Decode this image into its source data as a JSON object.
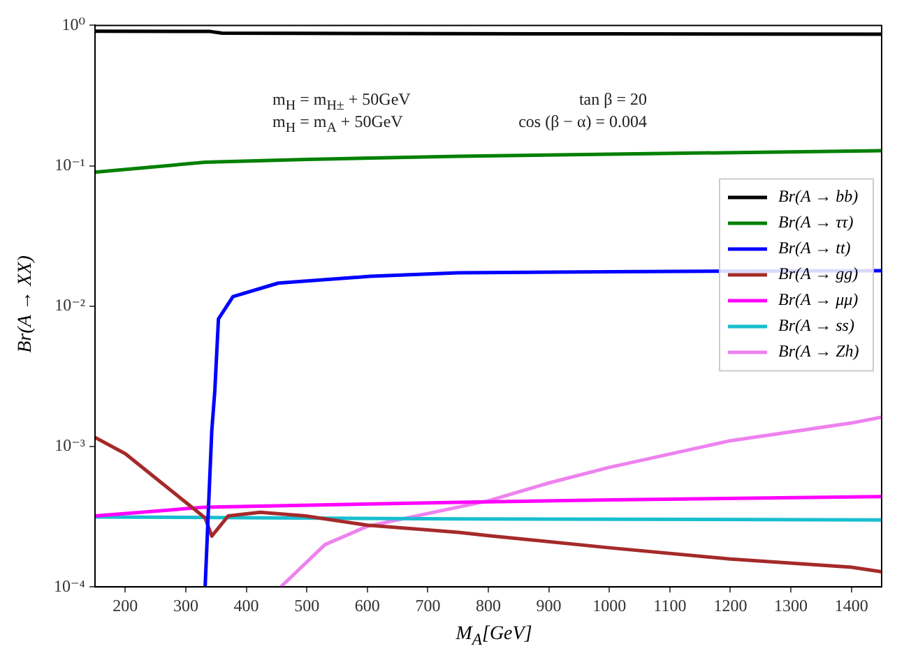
{
  "chart_data": {
    "type": "line",
    "xlabel": "M$_{A}$[GeV]",
    "ylabel": "Br(A → XX)",
    "annotations": [
      "m$_{H}$ = m$_{H±}$ + 50GeV",
      "m$_{H}$ = m$_{A}$ + 50GeV",
      "tan β = 20",
      "cos (β − α) = 0.004"
    ],
    "log": "y",
    "grid": false,
    "legend": "right",
    "marker": "none",
    "line_style": "solid",
    "xlim": [
      150,
      1450
    ],
    "xticks": [
      200,
      300,
      400,
      500,
      600,
      700,
      800,
      900,
      1000,
      1100,
      1200,
      1300,
      1400
    ],
    "ylim": [
      0.0001,
      1
    ],
    "yticks": [
      {
        "value": 0.0001,
        "label": "10⁻⁴"
      },
      {
        "value": 0.001,
        "label": "10⁻³"
      },
      {
        "value": 0.01,
        "label": "10⁻²"
      },
      {
        "value": 0.1,
        "label": "10⁻¹"
      },
      {
        "value": 1,
        "label": "10⁰"
      }
    ],
    "series": [
      {
        "name": "Br(A → bb)",
        "color": "#000000",
        "x": [
          150,
          340,
          360,
          600,
          1000,
          1450
        ],
        "values": [
          0.91,
          0.905,
          0.88,
          0.875,
          0.87,
          0.865
        ]
      },
      {
        "name": "Br(A → ττ)",
        "color": "#008000",
        "x": [
          150,
          332,
          500,
          750,
          1000,
          1450
        ],
        "values": [
          0.09,
          0.106,
          0.111,
          0.117,
          0.121,
          0.128
        ]
      },
      {
        "name": "Br(A → tt)",
        "color": "#0000ff",
        "x": [
          332,
          338,
          343,
          348,
          354,
          378,
          453,
          605,
          750,
          1000,
          1450
        ],
        "values": [
          0.0001,
          0.00041,
          0.0013,
          0.0025,
          0.0081,
          0.0117,
          0.0146,
          0.0163,
          0.0173,
          0.0176,
          0.0179
        ]
      },
      {
        "name": "Br(A → gg)",
        "color": "#a52a2a",
        "x": [
          150,
          200,
          300,
          332,
          343,
          370,
          423,
          498,
          600,
          750,
          800,
          1000,
          1200,
          1400,
          1450
        ],
        "values": [
          0.00116,
          0.00089,
          0.0004,
          0.00031,
          0.00023,
          0.00032,
          0.00034,
          0.00032,
          0.000275,
          0.000245,
          0.000232,
          0.00019,
          0.000158,
          0.000138,
          0.000128
        ]
      },
      {
        "name": "Br(A → μμ)",
        "color": "#ff00ff",
        "x": [
          150,
          332,
          750,
          1000,
          1450
        ],
        "values": [
          0.00032,
          0.00037,
          0.0004,
          0.000417,
          0.00044
        ]
      },
      {
        "name": "Br(A → ss)",
        "color": "#17becf",
        "x": [
          150,
          750,
          1450
        ],
        "values": [
          0.000315,
          0.000305,
          0.0003
        ]
      },
      {
        "name": "Br(A → Zh)",
        "color": "#ee82ee",
        "x": [
          457,
          530,
          600,
          750,
          800,
          900,
          1000,
          1200,
          1400,
          1450
        ],
        "values": [
          0.0001,
          0.0002,
          0.00027,
          0.00037,
          0.00041,
          0.00055,
          0.00071,
          0.0011,
          0.00147,
          0.00162
        ]
      }
    ]
  }
}
